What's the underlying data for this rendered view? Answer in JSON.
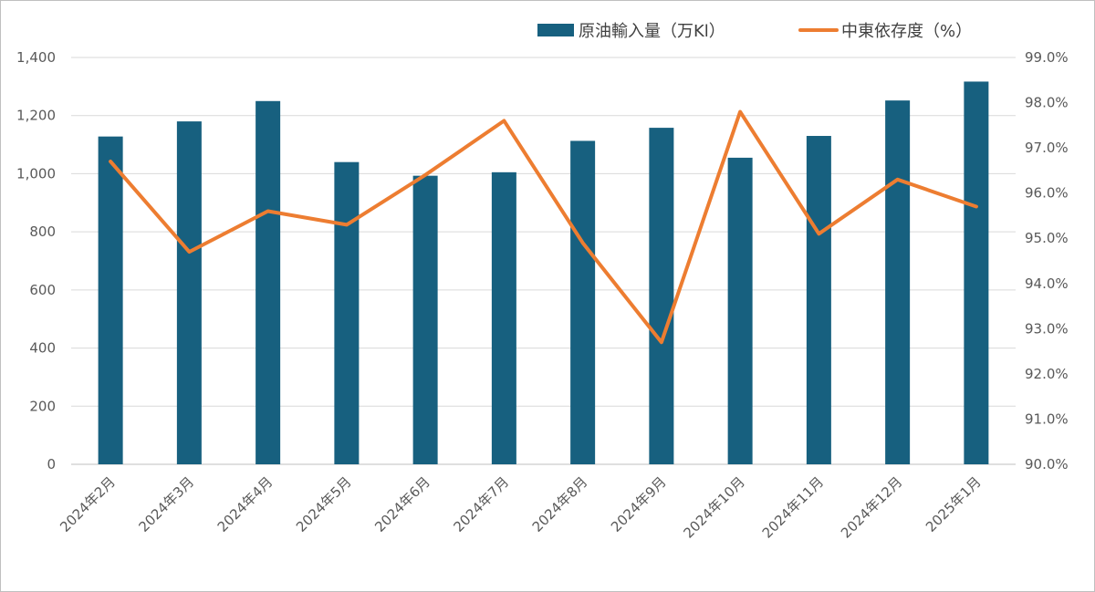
{
  "chart_data": {
    "type": "bar+line",
    "categories": [
      "2024年2月",
      "2024年3月",
      "2024年4月",
      "2024年5月",
      "2024年6月",
      "2024年7月",
      "2024年8月",
      "2024年9月",
      "2024年10月",
      "2024年11月",
      "2024年12月",
      "2025年1月"
    ],
    "series": [
      {
        "name": "原油輸入量（万Kl）",
        "type": "bar",
        "axis": "left",
        "color": "#17607f",
        "values": [
          1128,
          1180,
          1250,
          1040,
          993,
          1005,
          1113,
          1158,
          1055,
          1130,
          1252,
          1317
        ]
      },
      {
        "name": "中東依存度（%）",
        "type": "line",
        "axis": "right",
        "color": "#ed7d31",
        "values": [
          96.7,
          94.7,
          95.6,
          95.3,
          96.4,
          97.6,
          94.9,
          92.7,
          97.8,
          95.1,
          96.3,
          95.7
        ]
      }
    ],
    "y_left": {
      "ylim": [
        0,
        1400
      ],
      "ticks": [
        0,
        200,
        400,
        600,
        800,
        1000,
        1200,
        1400
      ],
      "tick_labels": [
        "0",
        "200",
        "400",
        "600",
        "800",
        "1,000",
        "1,200",
        "1,400"
      ]
    },
    "y_right": {
      "ylim": [
        90.0,
        99.0
      ],
      "ticks": [
        90,
        91,
        92,
        93,
        94,
        95,
        96,
        97,
        98,
        99
      ],
      "tick_labels": [
        "90.0%",
        "91.0%",
        "92.0%",
        "93.0%",
        "94.0%",
        "95.0%",
        "96.0%",
        "97.0%",
        "98.0%",
        "99.0%"
      ]
    },
    "grid": true,
    "legend": "top-right"
  }
}
